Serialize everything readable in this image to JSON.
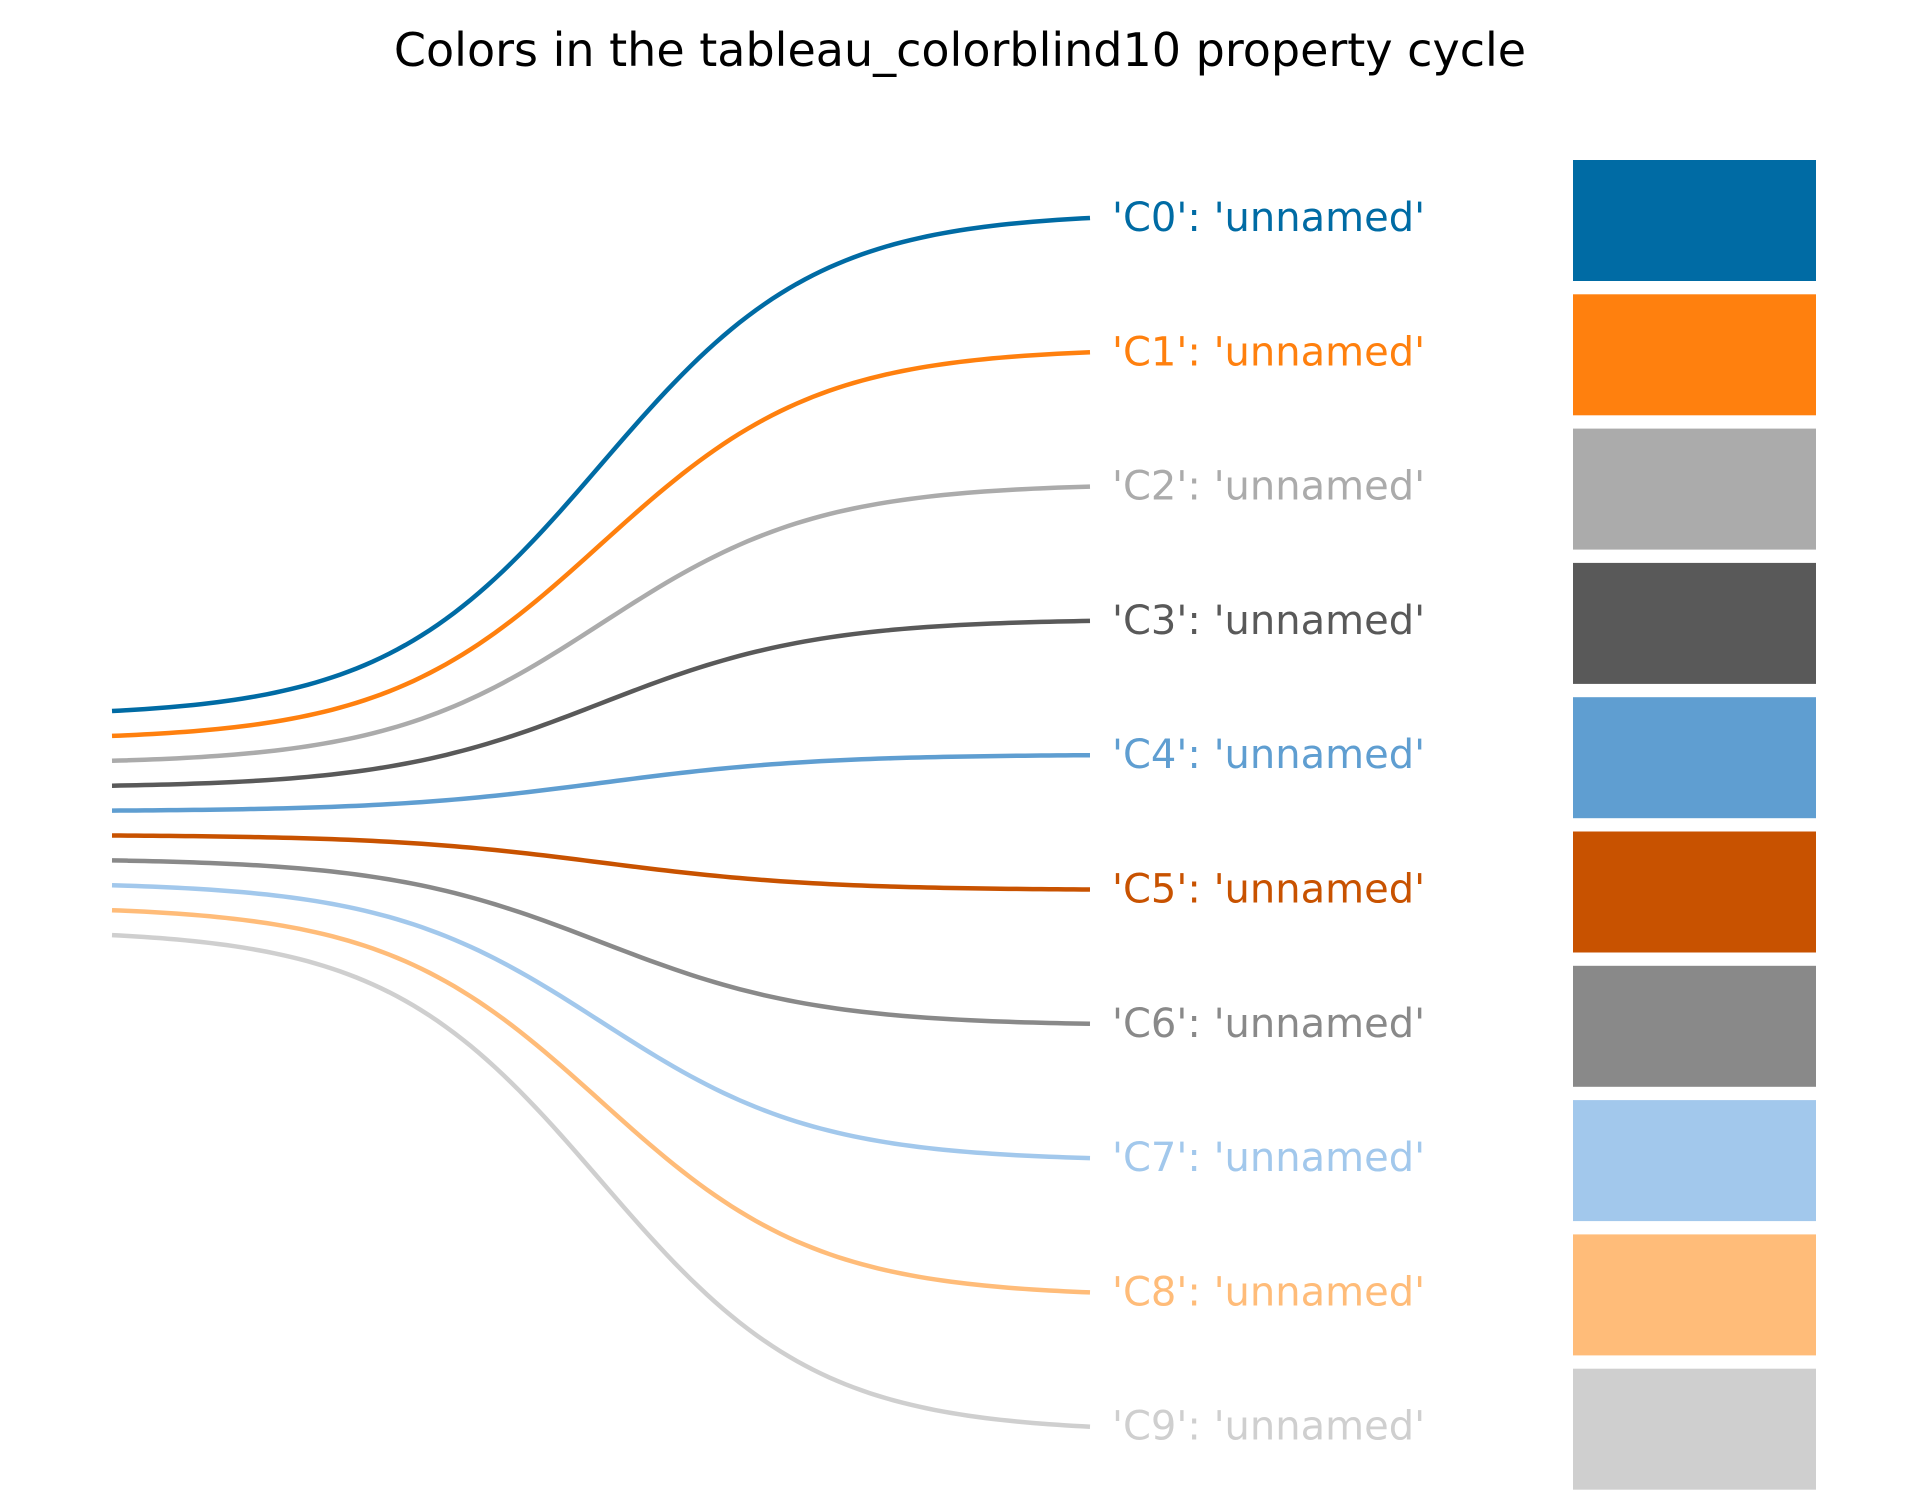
{
  "chart_data": {
    "type": "line",
    "title": "Colors in the tableau_colorblind10 property cycle",
    "entries": [
      {
        "key": "C0",
        "name": "unnamed",
        "color": "#006BA4",
        "label": "'C0': 'unnamed'"
      },
      {
        "key": "C1",
        "name": "unnamed",
        "color": "#FF800E",
        "label": "'C1': 'unnamed'"
      },
      {
        "key": "C2",
        "name": "unnamed",
        "color": "#ABABAB",
        "label": "'C2': 'unnamed'"
      },
      {
        "key": "C3",
        "name": "unnamed",
        "color": "#595959",
        "label": "'C3': 'unnamed'"
      },
      {
        "key": "C4",
        "name": "unnamed",
        "color": "#5F9ED1",
        "label": "'C4': 'unnamed'"
      },
      {
        "key": "C5",
        "name": "unnamed",
        "color": "#C85200",
        "label": "'C5': 'unnamed'"
      },
      {
        "key": "C6",
        "name": "unnamed",
        "color": "#898989",
        "label": "'C6': 'unnamed'"
      },
      {
        "key": "C7",
        "name": "unnamed",
        "color": "#A2C8EC",
        "label": "'C7': 'unnamed'"
      },
      {
        "key": "C8",
        "name": "unnamed",
        "color": "#FFBC79",
        "label": "'C8': 'unnamed'"
      },
      {
        "key": "C9",
        "name": "unnamed",
        "color": "#CFCFCF",
        "label": "'C9': 'unnamed'"
      }
    ],
    "grid": false,
    "axes_visible": false
  }
}
